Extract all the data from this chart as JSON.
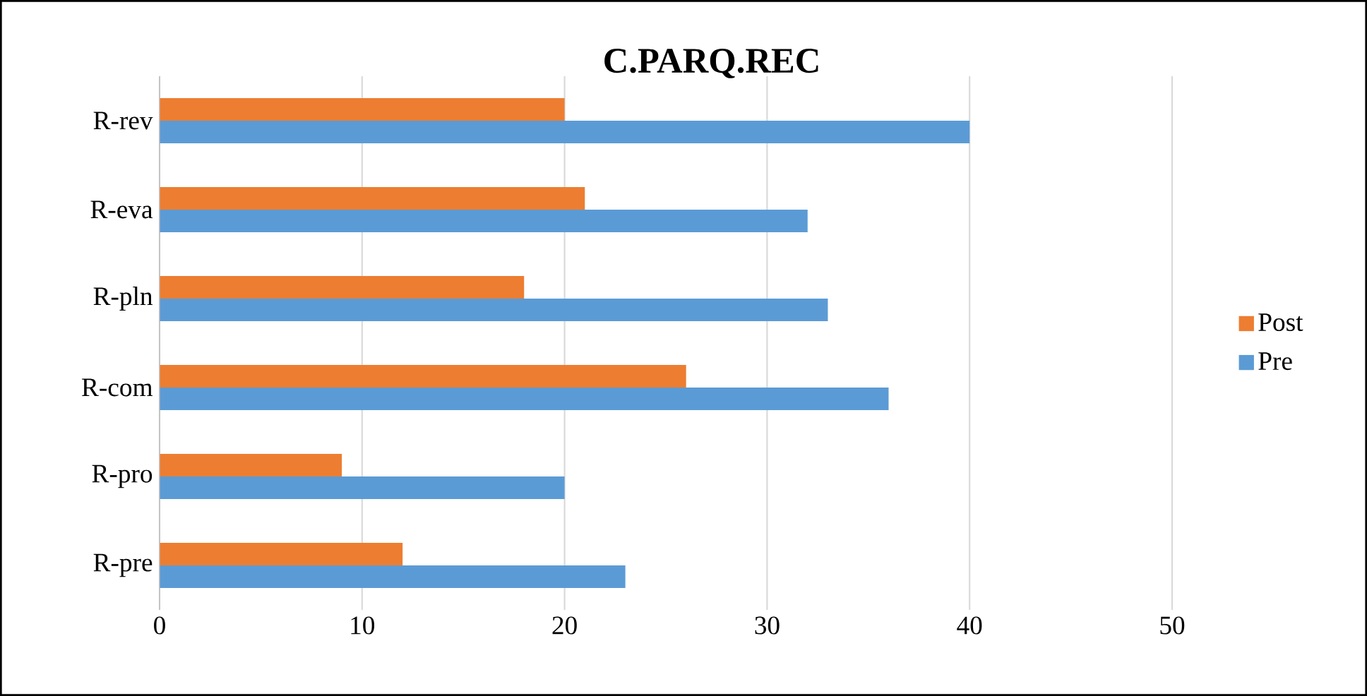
{
  "chart_data": {
    "type": "bar",
    "orientation": "horizontal",
    "title": "C.PARQ.REC",
    "categories": [
      "R-rev",
      "R-eva",
      "R-pln",
      "R-com",
      "R-pro",
      "R-pre"
    ],
    "series": [
      {
        "name": "Post",
        "color": "#ed7d31",
        "values": [
          20,
          21,
          18,
          26,
          9,
          12
        ]
      },
      {
        "name": "Pre",
        "color": "#5b9bd5",
        "values": [
          40,
          32,
          33,
          36,
          20,
          23
        ]
      }
    ],
    "xlim": [
      0,
      50
    ],
    "xticks": [
      0,
      10,
      20,
      30,
      40,
      50
    ],
    "grid": "x",
    "legend": "right"
  }
}
